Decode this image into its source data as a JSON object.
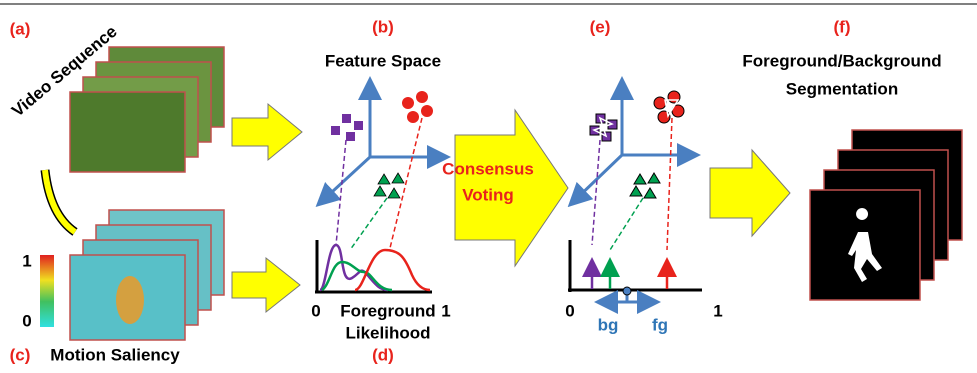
{
  "panels": [
    {
      "label": "(a)",
      "caption": [
        "Video Sequence"
      ]
    },
    {
      "label": "(b)",
      "caption": [
        "Feature Space"
      ]
    },
    {
      "label": "(c)",
      "caption": [
        "Motion Saliency"
      ]
    },
    {
      "label": "(d)",
      "caption": [
        "Foreground",
        "Likelihood"
      ]
    },
    {
      "label": "(e)"
    },
    {
      "label": "(f)",
      "caption": [
        "Foreground/Background",
        "Segmentation"
      ]
    }
  ],
  "consensus": [
    "Consensus",
    "Voting"
  ],
  "colorbar": {
    "max": "1",
    "min": "0"
  },
  "likelihood_axis": {
    "min": "0",
    "max": "1"
  },
  "voting_axis": {
    "min": "0",
    "max": "1",
    "left": "bg",
    "right": "fg"
  }
}
